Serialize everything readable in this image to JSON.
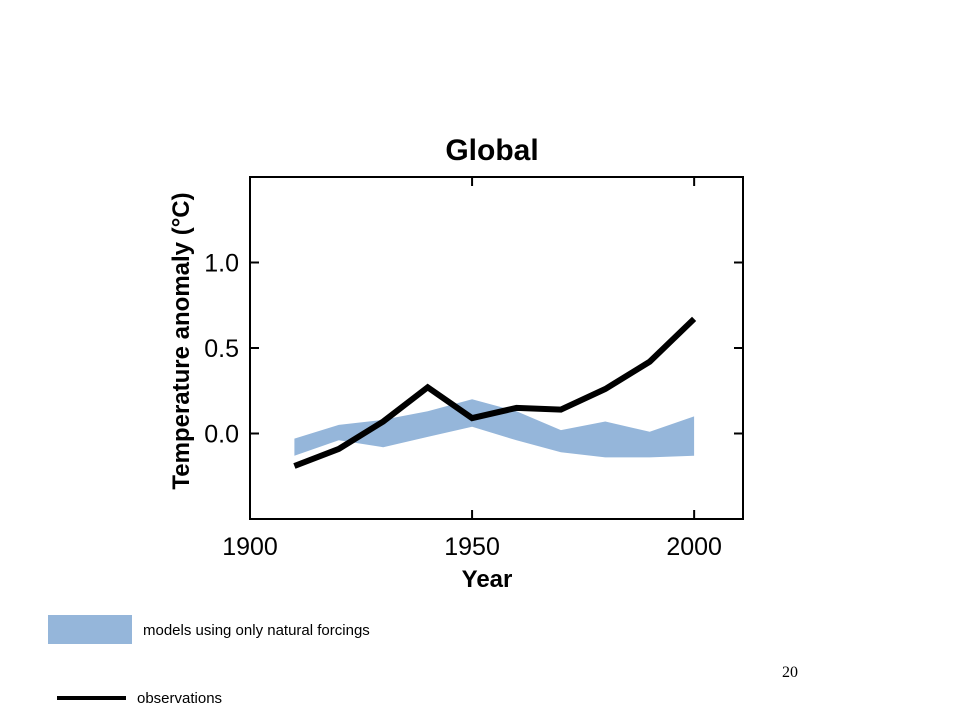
{
  "chart_data": {
    "type": "line",
    "title": "Global",
    "xlabel": "Year",
    "ylabel": "Temperature anomaly (°C)",
    "xlim": [
      1900,
      2011
    ],
    "ylim": [
      -0.5,
      1.5
    ],
    "xticks": [
      1900,
      1950,
      2000
    ],
    "xtick_labels": [
      "1900",
      "1950",
      "2000"
    ],
    "yticks": [
      0.0,
      0.5,
      1.0
    ],
    "ytick_labels": [
      "0.0",
      "0.5",
      "1.0"
    ],
    "grid": false,
    "band": {
      "name": "models using only natural forcings",
      "color": "#95b6da",
      "x": [
        1910,
        1920,
        1930,
        1940,
        1950,
        1960,
        1970,
        1980,
        1990,
        2000
      ],
      "upper": [
        -0.03,
        0.05,
        0.08,
        0.13,
        0.2,
        0.13,
        0.02,
        0.07,
        0.01,
        0.1
      ],
      "lower": [
        -0.13,
        -0.04,
        -0.08,
        -0.02,
        0.04,
        -0.04,
        -0.11,
        -0.14,
        -0.14,
        -0.13
      ]
    },
    "series": [
      {
        "name": "observations",
        "color": "#000000",
        "x": [
          1910,
          1920,
          1930,
          1940,
          1950,
          1960,
          1970,
          1980,
          1990,
          2000
        ],
        "values": [
          -0.19,
          -0.09,
          0.07,
          0.27,
          0.09,
          0.15,
          0.14,
          0.26,
          0.42,
          0.67
        ]
      }
    ]
  },
  "page": {
    "number": "20"
  }
}
